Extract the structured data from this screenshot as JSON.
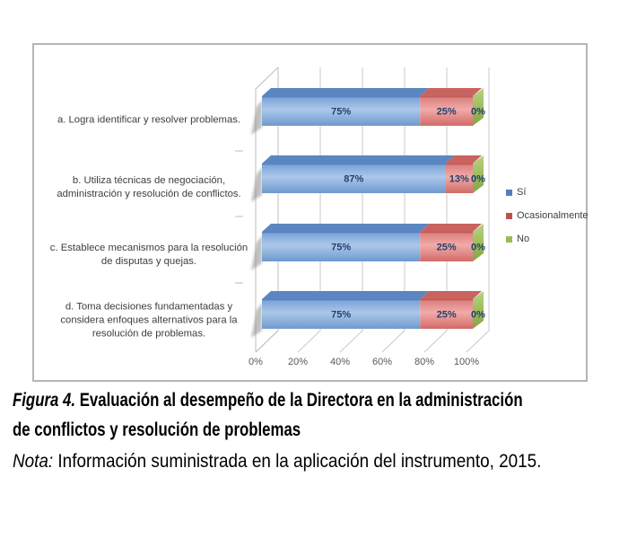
{
  "figure": {
    "caption": {
      "label": "Figura 4.",
      "line1_rest": " Evaluación al desempeño de la Directora en la administración",
      "line2": "de conflictos y resolución de problemas"
    },
    "note": {
      "label": "Nota:",
      "text": " Información suministrada en la aplicación del instrumento, 2015."
    }
  },
  "chart_data": {
    "type": "bar",
    "variant": "3d-horizontal-stacked",
    "title": "",
    "xlabel": "",
    "ylabel": "",
    "xlim": [
      0,
      100
    ],
    "grid": true,
    "legend_position": "right",
    "x_ticks": [
      "0%",
      "20%",
      "40%",
      "60%",
      "80%",
      "100%"
    ],
    "categories": [
      {
        "label": "a. Logra identificar y resolver problemas.",
        "lines": [
          "a. Logra identificar y resolver problemas."
        ]
      },
      {
        "label": "b. Utiliza técnicas de negociación, administración y resolución de conflictos.",
        "lines": [
          "b. Utiliza técnicas de negociación,",
          "administración y resolución de conflictos."
        ]
      },
      {
        "label": "c. Establece mecanismos para la resolución de disputas y quejas.",
        "lines": [
          "c. Establece mecanismos para la resolución",
          "de disputas y quejas."
        ]
      },
      {
        "label": "d. Toma decisiones fundamentadas y considera enfoques alternativos para la resolución de problemas.",
        "lines": [
          "d. Toma decisiones fundamentadas y",
          "considera enfoques alternativos para la",
          "resolución de problemas."
        ]
      }
    ],
    "series": [
      {
        "name": "Sí",
        "color": "#4f81bd",
        "values": [
          75,
          87,
          75,
          75
        ]
      },
      {
        "name": "Ocasionalmente",
        "color": "#c0504d",
        "values": [
          25,
          13,
          25,
          25
        ]
      },
      {
        "name": "No",
        "color": "#9bbb59",
        "values": [
          0,
          0,
          0,
          0
        ]
      }
    ],
    "data_labels": [
      [
        "75%",
        "25%",
        "0%"
      ],
      [
        "87%",
        "13%",
        "0%"
      ],
      [
        "75%",
        "25%",
        "0%"
      ],
      [
        "75%",
        "25%",
        "0%"
      ]
    ]
  }
}
